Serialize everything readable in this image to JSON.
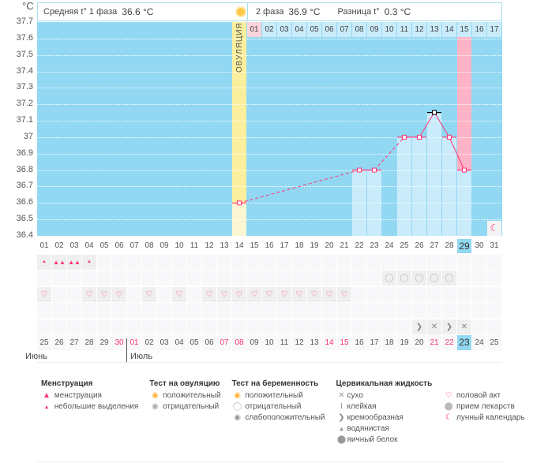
{
  "header": {
    "unit": "°C",
    "phase1_label": "Средняя t° 1 фаза",
    "phase1_value": "36.6 °C",
    "phase2_label": "2 фаза",
    "phase2_value": "36.9 °C",
    "diff_label": "Разница t°",
    "diff_value": "0.3 °C",
    "ovulation_label": "ОВУЛЯЦИЯ"
  },
  "chart_data": {
    "type": "line",
    "title": "",
    "ylabel": "°C",
    "ylim": [
      36.4,
      37.7
    ],
    "y_ticks": [
      "37.7",
      "37.6",
      "37.5",
      "37.4",
      "37.3",
      "37.2",
      "37.1",
      "37",
      "36.9",
      "36.8",
      "36.7",
      "36.6",
      "36.5",
      "36.4"
    ],
    "cycle_days": [
      "01",
      "02",
      "03",
      "04",
      "05",
      "06",
      "07",
      "08",
      "09",
      "10",
      "11",
      "12",
      "13",
      "14",
      "15",
      "16",
      "17",
      "18",
      "19",
      "20",
      "21",
      "22",
      "23",
      "24",
      "25",
      "26",
      "27",
      "28",
      "29",
      "30",
      "31"
    ],
    "temperatures": [
      null,
      null,
      null,
      null,
      null,
      null,
      null,
      null,
      null,
      null,
      null,
      null,
      null,
      36.6,
      null,
      null,
      null,
      null,
      null,
      null,
      null,
      36.8,
      36.8,
      null,
      37.0,
      37.0,
      37.15,
      37.0,
      36.8,
      null,
      null
    ],
    "ovulation_day": 14,
    "luteal_day_labels": [
      "01",
      "02",
      "03",
      "04",
      "05",
      "06",
      "07",
      "08",
      "09",
      "10",
      "11",
      "12",
      "13",
      "14",
      "15",
      "16",
      "17"
    ],
    "luteal_start_day": 15,
    "highlight_luteal_day": 15,
    "current_day": 29,
    "max_day": 27,
    "colors": {
      "line": "#ff3377",
      "bg": "#92d8f2",
      "fill": "#c9ebfa",
      "ovulation": "#fbef9e",
      "highlight": "#ffb3c6"
    }
  },
  "rows": {
    "menstruation": {
      "1": "light",
      "2": "heavy",
      "3": "heavy",
      "4": "light"
    },
    "pregnancy_test": {
      "24": "negative",
      "25": "negative",
      "26": "negative",
      "27": "negative",
      "28": "negative"
    },
    "intercourse": [
      1,
      4,
      5,
      6,
      8,
      10,
      12,
      13,
      14,
      15,
      16,
      17,
      18,
      19,
      20,
      21
    ],
    "medication": [],
    "cervical": {
      "26": "creamy",
      "27": "dry",
      "28": "creamy",
      "29": "dry"
    },
    "moon_day": 31
  },
  "dates": [
    "25",
    "26",
    "27",
    "28",
    "29",
    "30",
    "01",
    "02",
    "03",
    "04",
    "05",
    "06",
    "07",
    "08",
    "09",
    "10",
    "11",
    "12",
    "13",
    "14",
    "15",
    "16",
    "17",
    "18",
    "19",
    "20",
    "21",
    "22",
    "23",
    "24",
    "25"
  ],
  "date_red": [
    6,
    7,
    13,
    14,
    20,
    21,
    27,
    28
  ],
  "months": {
    "june": "Июнь",
    "july": "Июль"
  },
  "legend": {
    "menstruation": {
      "title": "Менструация",
      "items": [
        "менструация",
        "небольшие выделения"
      ]
    },
    "ovulation_test": {
      "title": "Тест на овуляцию",
      "items": [
        "положительный",
        "отрицательный"
      ]
    },
    "pregnancy_test": {
      "title": "Тест на беременность",
      "items": [
        "положительный",
        "отрицательный",
        "слабоположительный"
      ]
    },
    "cervical": {
      "title": "Цервикальная жидкость",
      "items": [
        "сухо",
        "клейкая",
        "кремообразная",
        "водянистая",
        "яичный белок"
      ]
    },
    "other": {
      "items": [
        "половой акт",
        "прием лекарств",
        "лунный календарь"
      ]
    }
  }
}
